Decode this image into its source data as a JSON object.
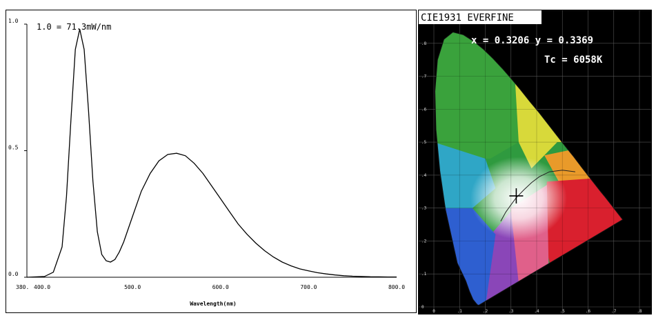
{
  "chart_data": [
    {
      "type": "line",
      "title": "",
      "annotation": "1.0 = 71.3mW/nm",
      "xlabel": "Wavelength(nm)",
      "ylabel": "",
      "xlim": [
        380,
        800
      ],
      "ylim": [
        0,
        1.0
      ],
      "x_ticks": [
        {
          "value": 380,
          "label": "380.0"
        },
        {
          "value": 400,
          "label": "400.0"
        },
        {
          "value": 500,
          "label": "500.0"
        },
        {
          "value": 600,
          "label": "600.0"
        },
        {
          "value": 700,
          "label": "700.0"
        },
        {
          "value": 800,
          "label": "800.0"
        }
      ],
      "y_ticks": [
        {
          "value": 0,
          "label": "0.0"
        },
        {
          "value": 0.5,
          "label": "0.5"
        },
        {
          "value": 1.0,
          "label": "1.0"
        }
      ],
      "grid": false,
      "series": [
        {
          "x": [
            380,
            400,
            410,
            420,
            425,
            430,
            435,
            440,
            445,
            450,
            455,
            460,
            465,
            470,
            475,
            480,
            485,
            490,
            500,
            510,
            520,
            530,
            540,
            550,
            560,
            570,
            580,
            590,
            600,
            610,
            620,
            630,
            640,
            650,
            660,
            670,
            680,
            690,
            700,
            710,
            720,
            730,
            740,
            750,
            760,
            770,
            780,
            790,
            800
          ],
          "y": [
            0.0,
            0.003,
            0.02,
            0.12,
            0.32,
            0.62,
            0.9,
            0.98,
            0.9,
            0.66,
            0.38,
            0.18,
            0.09,
            0.065,
            0.06,
            0.07,
            0.1,
            0.14,
            0.24,
            0.34,
            0.41,
            0.46,
            0.485,
            0.49,
            0.48,
            0.45,
            0.41,
            0.36,
            0.31,
            0.26,
            0.21,
            0.17,
            0.135,
            0.105,
            0.08,
            0.06,
            0.045,
            0.033,
            0.025,
            0.018,
            0.013,
            0.009,
            0.006,
            0.004,
            0.003,
            0.002,
            0.0015,
            0.001,
            0.001
          ]
        }
      ]
    },
    {
      "type": "scatter",
      "title": "CIE1931 EVERFINE",
      "annotations": [
        "x = 0.3206 y = 0.3369",
        "Tc = 6058K"
      ],
      "xlim": [
        0,
        0.8
      ],
      "ylim": [
        0,
        0.9
      ],
      "x_tick_labels": [
        "0",
        ".1",
        ".2",
        ".3",
        ".4",
        ".5",
        ".6",
        ".7",
        ".8"
      ],
      "y_tick_labels": [
        "0",
        ".1",
        ".2",
        ".3",
        ".4",
        ".5",
        ".6",
        ".7",
        ".8",
        ".9"
      ],
      "grid": true,
      "point": {
        "x": 0.3206,
        "y": 0.3369
      }
    }
  ],
  "colors": {
    "curve": "#000000",
    "cie_background": "#000000",
    "cie_text": "#ffffff",
    "title_bg": "#ffffff"
  }
}
